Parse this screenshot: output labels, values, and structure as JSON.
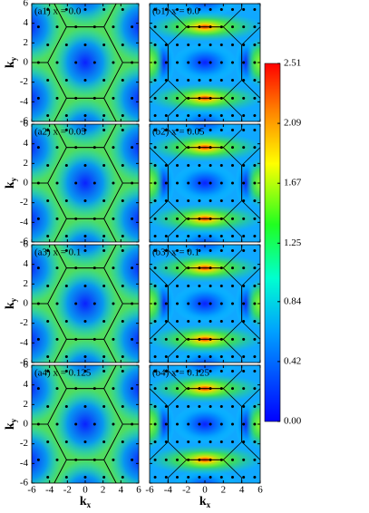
{
  "chart_data": {
    "type": "heatmap",
    "xlim": [
      -6,
      6
    ],
    "ylim": [
      -6,
      6
    ],
    "xticks": [
      -6,
      -4,
      -2,
      0,
      2,
      4,
      6
    ],
    "yticks": [
      -6,
      -4,
      -2,
      0,
      2,
      4,
      6
    ],
    "xlabel": "k",
    "xlabel_sub": "x",
    "ylabel": "k",
    "ylabel_sub": "y",
    "panels": [
      {
        "title": "(a1) x = 0.0",
        "kind": "a"
      },
      {
        "title": "(b1) x = 0.0",
        "kind": "b"
      },
      {
        "title": "(a2) x = 0.05",
        "kind": "a"
      },
      {
        "title": "(b2) x = 0.05",
        "kind": "b"
      },
      {
        "title": "(a3) x = 0.1",
        "kind": "a"
      },
      {
        "title": "(b3) x = 0.1",
        "kind": "b"
      },
      {
        "title": "(a4) x = 0.125",
        "kind": "a"
      },
      {
        "title": "(b4) x = 0.125",
        "kind": "b"
      }
    ],
    "colorbar": {
      "lim": [
        0,
        2.51
      ],
      "ticks": [
        {
          "value": 0,
          "label": "0.00"
        },
        0.42,
        0.84,
        1.25,
        1.67,
        2.09,
        2.51
      ]
    }
  }
}
